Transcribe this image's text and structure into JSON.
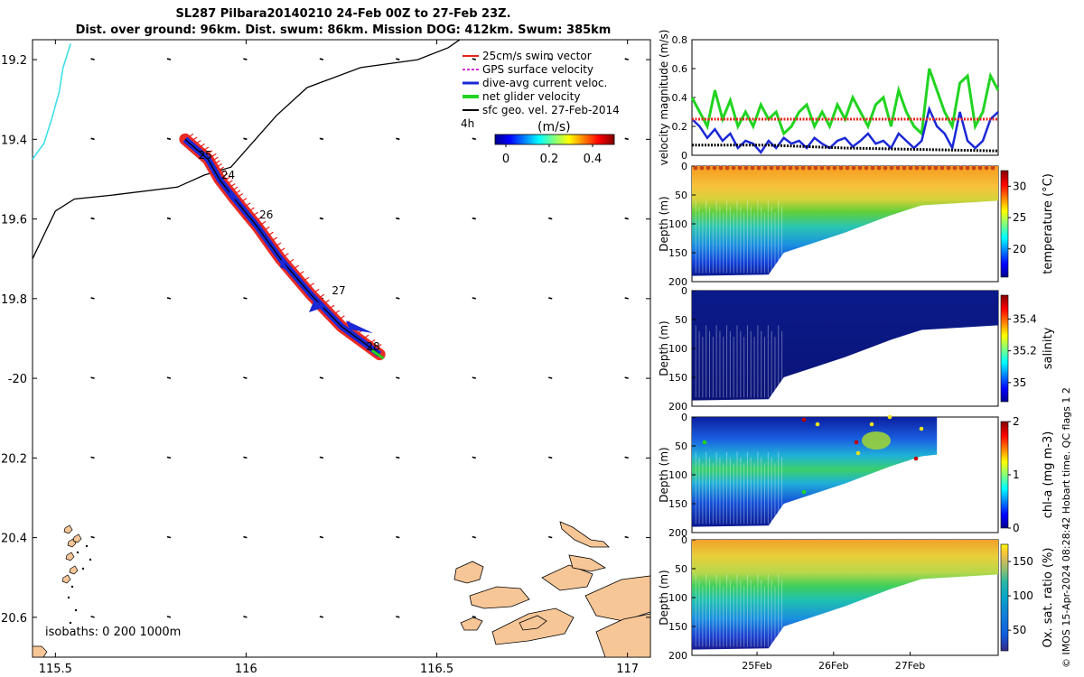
{
  "title": {
    "line1": "SL287 Pilbara20140210 24-Feb 00Z to 27-Feb 23Z.",
    "line2": "Dist. over ground: 96km. Dist. swum: 86km. Mission DOG: 412km. Swum: 385km"
  },
  "stamp": "© IMOS 15-Apr-2024 08:28:42 Hobart time. QC flags 1 2",
  "colors": {
    "swim_vector": "#e8201a",
    "gps_velocity": "#d62fd6",
    "dive_current": "#1a28d6",
    "net_glider": "#21d421",
    "sfc_geo": "#000000",
    "coast": "#f7c697",
    "isobath_0": "#3ee0e6",
    "track": "#000000"
  },
  "chart_data": [
    {
      "type": "map",
      "xlim": [
        115.44,
        117.06
      ],
      "ylim": [
        -20.7,
        -19.15
      ],
      "xticks": [
        115.5,
        116,
        116.5,
        117
      ],
      "xtick_labels": [
        "115.5",
        "116",
        "116.5",
        "117"
      ],
      "yticks": [
        -19.2,
        -19.4,
        -19.6,
        -19.8,
        -20,
        -20.2,
        -20.4,
        -20.6
      ],
      "ytick_labels": [
        "19.2",
        "19.4",
        "19.6",
        "19.8",
        "-20",
        "20.2",
        "20.4",
        "20.6"
      ],
      "legend": [
        {
          "key": "swim",
          "label": "25cm/s swim vector"
        },
        {
          "key": "gps",
          "label": "GPS surface velocity"
        },
        {
          "key": "dive",
          "label": "dive-avg current veloc."
        },
        {
          "key": "net",
          "label": "net glider velocity"
        },
        {
          "key": "geo",
          "label": "sfc geo. vel. 27-Feb-2014"
        }
      ],
      "legend_position": "top-right",
      "label_4h": "4h",
      "colorbar": {
        "label": "(m/s)",
        "ticks": [
          0,
          0.2,
          0.4
        ],
        "tick_labels": [
          "0",
          "0.2",
          "0.4"
        ],
        "range": [
          -0.05,
          0.5
        ]
      },
      "isobaths_label": "isobaths: 0   200  1000m",
      "glider_track": [
        {
          "lon": 115.84,
          "lat": -19.4
        },
        {
          "lon": 115.9,
          "lat": -19.45
        },
        {
          "lon": 115.93,
          "lat": -19.5
        },
        {
          "lon": 115.97,
          "lat": -19.55
        },
        {
          "lon": 116.03,
          "lat": -19.62
        },
        {
          "lon": 116.09,
          "lat": -19.7
        },
        {
          "lon": 116.17,
          "lat": -19.79
        },
        {
          "lon": 116.25,
          "lat": -19.87
        },
        {
          "lon": 116.35,
          "lat": -19.94
        }
      ],
      "day_labels": [
        {
          "text": "25",
          "lon": 115.87,
          "lat": -19.44
        },
        {
          "text": "24",
          "lon": 115.93,
          "lat": -19.49
        },
        {
          "text": "26",
          "lon": 116.03,
          "lat": -19.59
        },
        {
          "text": "27",
          "lon": 116.22,
          "lat": -19.78
        },
        {
          "text": "28",
          "lon": 116.31,
          "lat": -19.92
        }
      ],
      "isobath_200": [
        {
          "lon": 115.44,
          "lat": -19.7
        },
        {
          "lon": 115.5,
          "lat": -19.58
        },
        {
          "lon": 115.55,
          "lat": -19.55
        },
        {
          "lon": 115.65,
          "lat": -19.54
        },
        {
          "lon": 115.82,
          "lat": -19.52
        },
        {
          "lon": 115.89,
          "lat": -19.49
        },
        {
          "lon": 115.96,
          "lat": -19.47
        },
        {
          "lon": 116.08,
          "lat": -19.34
        },
        {
          "lon": 116.16,
          "lat": -19.27
        },
        {
          "lon": 116.3,
          "lat": -19.22
        },
        {
          "lon": 116.45,
          "lat": -19.2
        },
        {
          "lon": 116.53,
          "lat": -19.17
        },
        {
          "lon": 116.56,
          "lat": -19.15
        }
      ],
      "isobath_0_line": [
        {
          "lon": 115.44,
          "lat": -19.45
        },
        {
          "lon": 115.47,
          "lat": -19.41
        },
        {
          "lon": 115.49,
          "lat": -19.35
        },
        {
          "lon": 115.51,
          "lat": -19.28
        },
        {
          "lon": 115.52,
          "lat": -19.22
        },
        {
          "lon": 115.54,
          "lat": -19.16
        }
      ]
    },
    {
      "type": "line",
      "ylabel": "velocity magnitude (m/s)",
      "ylim": [
        0,
        0.8
      ],
      "yticks": [
        0,
        0.2,
        0.4,
        0.6,
        0.8
      ],
      "ytick_labels": [
        "0",
        "0.2",
        "0.4",
        "0.6",
        "0.8"
      ],
      "xlim": [
        0,
        4
      ],
      "series": [
        {
          "key": "net",
          "style": "line",
          "x": [
            0,
            0.1,
            0.2,
            0.3,
            0.4,
            0.5,
            0.6,
            0.7,
            0.8,
            0.9,
            1.0,
            1.1,
            1.2,
            1.3,
            1.4,
            1.5,
            1.6,
            1.7,
            1.8,
            1.9,
            2.0,
            2.1,
            2.2,
            2.3,
            2.4,
            2.5,
            2.6,
            2.7,
            2.8,
            2.9,
            3.0,
            3.1,
            3.2,
            3.3,
            3.4,
            3.5,
            3.6,
            3.7,
            3.8,
            3.9,
            4.0
          ],
          "values": [
            0.4,
            0.3,
            0.2,
            0.45,
            0.25,
            0.38,
            0.2,
            0.3,
            0.2,
            0.35,
            0.25,
            0.3,
            0.15,
            0.2,
            0.3,
            0.35,
            0.2,
            0.3,
            0.2,
            0.35,
            0.25,
            0.4,
            0.3,
            0.2,
            0.35,
            0.4,
            0.2,
            0.45,
            0.3,
            0.2,
            0.15,
            0.6,
            0.45,
            0.3,
            0.2,
            0.5,
            0.55,
            0.2,
            0.3,
            0.55,
            0.45
          ]
        },
        {
          "key": "dive",
          "style": "line",
          "x": [
            0,
            0.1,
            0.2,
            0.3,
            0.4,
            0.5,
            0.6,
            0.7,
            0.8,
            0.9,
            1.0,
            1.1,
            1.2,
            1.3,
            1.4,
            1.5,
            1.6,
            1.7,
            1.8,
            1.9,
            2.0,
            2.1,
            2.2,
            2.3,
            2.4,
            2.5,
            2.6,
            2.7,
            2.8,
            2.9,
            3.0,
            3.1,
            3.2,
            3.3,
            3.4,
            3.5,
            3.6,
            3.7,
            3.8,
            3.9,
            4.0
          ],
          "values": [
            0.25,
            0.2,
            0.12,
            0.18,
            0.1,
            0.15,
            0.05,
            0.1,
            0.08,
            0.02,
            0.1,
            0.05,
            0.12,
            0.08,
            0.1,
            0.05,
            0.12,
            0.08,
            0.05,
            0.1,
            0.12,
            0.06,
            0.1,
            0.15,
            0.08,
            0.1,
            0.05,
            0.15,
            0.1,
            0.05,
            0.1,
            0.32,
            0.2,
            0.15,
            0.05,
            0.3,
            0.1,
            0.05,
            0.1,
            0.25,
            0.3
          ]
        },
        {
          "key": "swim",
          "style": "dots",
          "x": [
            0,
            4
          ],
          "values": [
            0.25,
            0.25
          ]
        },
        {
          "key": "geo",
          "style": "dots",
          "x": [
            0,
            1,
            2,
            3,
            4
          ],
          "values": [
            0.07,
            0.07,
            0.05,
            0.04,
            0.03
          ]
        }
      ]
    },
    {
      "type": "heatmap",
      "variable": "temperature",
      "colorbar_label": "temperature (°C)",
      "colorbar_ticks": [
        20,
        25,
        30
      ],
      "colorbar_tick_labels": [
        "20",
        "25",
        "30"
      ],
      "clim": [
        15.5,
        32.5
      ],
      "ylabel": "Depth (m)",
      "ylim": [
        0,
        200
      ],
      "yticks": [
        0,
        50,
        100,
        150,
        200
      ],
      "ytick_labels": [
        "0",
        "50",
        "100",
        "150",
        "200"
      ],
      "bottom_depth": [
        {
          "x": 0,
          "d": 190
        },
        {
          "x": 1.0,
          "d": 188
        },
        {
          "x": 1.2,
          "d": 150
        },
        {
          "x": 2.0,
          "d": 115
        },
        {
          "x": 2.6,
          "d": 85
        },
        {
          "x": 3.0,
          "d": 68
        },
        {
          "x": 4.0,
          "d": 60
        }
      ]
    },
    {
      "type": "heatmap",
      "variable": "salinity",
      "colorbar_label": "salinity",
      "colorbar_ticks": [
        35,
        35.2,
        35.4
      ],
      "colorbar_tick_labels": [
        "35",
        "35.2",
        "35.4"
      ],
      "clim": [
        34.88,
        35.55
      ],
      "ylabel": "Depth (m)",
      "ylim": [
        0,
        200
      ],
      "yticks": [
        0,
        50,
        100,
        150,
        200
      ],
      "ytick_labels": [
        "0",
        "50",
        "100",
        "150",
        "200"
      ],
      "bottom_depth": [
        {
          "x": 0,
          "d": 190
        },
        {
          "x": 1.0,
          "d": 188
        },
        {
          "x": 1.2,
          "d": 150
        },
        {
          "x": 2.0,
          "d": 115
        },
        {
          "x": 2.6,
          "d": 85
        },
        {
          "x": 3.0,
          "d": 68
        },
        {
          "x": 4.0,
          "d": 60
        }
      ]
    },
    {
      "type": "heatmap",
      "variable": "chl-a",
      "colorbar_label": "chl-a (mg m-3)",
      "colorbar_ticks": [
        0,
        1,
        2
      ],
      "colorbar_tick_labels": [
        "0",
        "1",
        "2"
      ],
      "clim": [
        0,
        2
      ],
      "ylabel": "Depth (m)",
      "ylim": [
        0,
        200
      ],
      "yticks": [
        0,
        50,
        100,
        150,
        200
      ],
      "ytick_labels": [
        "0",
        "50",
        "100",
        "150",
        "200"
      ],
      "data_end_x": 3.2,
      "bottom_depth": [
        {
          "x": 0,
          "d": 190
        },
        {
          "x": 1.0,
          "d": 188
        },
        {
          "x": 1.2,
          "d": 150
        },
        {
          "x": 2.0,
          "d": 115
        },
        {
          "x": 2.6,
          "d": 85
        },
        {
          "x": 3.0,
          "d": 68
        },
        {
          "x": 3.2,
          "d": 65
        }
      ]
    },
    {
      "type": "heatmap",
      "variable": "oxygen saturation",
      "colorbar_label": "Ox. sat. ratio (%)",
      "colorbar_ticks": [
        50,
        100,
        150
      ],
      "colorbar_tick_labels": [
        "50",
        "100",
        "150"
      ],
      "clim": [
        20,
        175
      ],
      "ylabel": "Depth (m)",
      "ylim": [
        0,
        200
      ],
      "yticks": [
        0,
        50,
        100,
        150,
        200
      ],
      "ytick_labels": [
        "0",
        "50",
        "100",
        "150",
        "200"
      ],
      "xticks": [
        0.85,
        1.85,
        2.85
      ],
      "xtick_labels": [
        "25Feb",
        "26Feb",
        "27Feb"
      ],
      "bottom_depth": [
        {
          "x": 0,
          "d": 190
        },
        {
          "x": 1.0,
          "d": 188
        },
        {
          "x": 1.2,
          "d": 150
        },
        {
          "x": 2.0,
          "d": 115
        },
        {
          "x": 2.6,
          "d": 85
        },
        {
          "x": 3.0,
          "d": 68
        },
        {
          "x": 4.0,
          "d": 60
        }
      ]
    }
  ]
}
